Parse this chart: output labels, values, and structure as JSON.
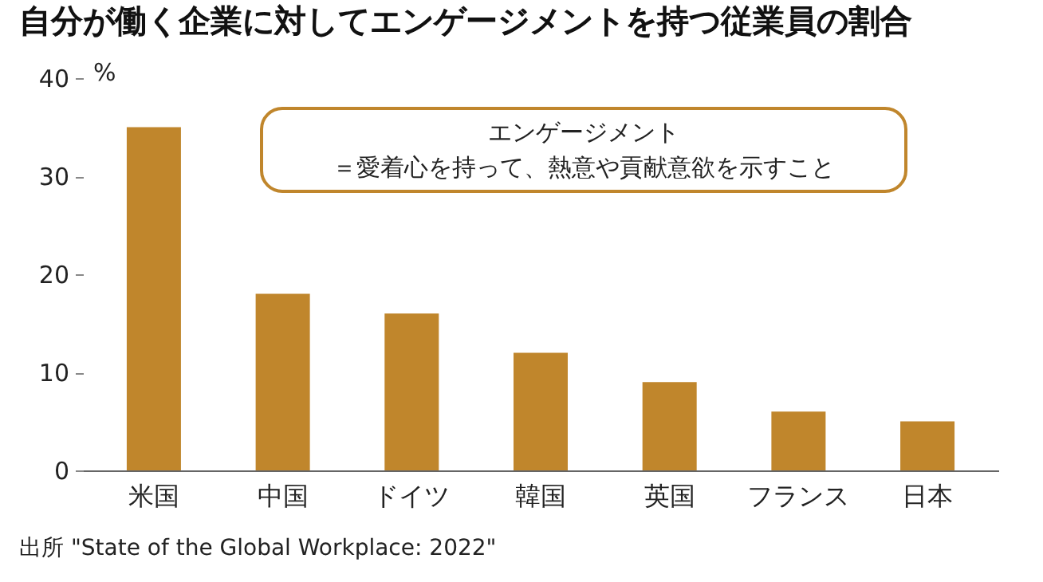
{
  "chart_data": {
    "type": "bar",
    "title": "自分が働く企業に対してエンゲージメントを持つ従業員の割合",
    "ylabel": "%",
    "categories": [
      "米国",
      "中国",
      "ドイツ",
      "韓国",
      "英国",
      "フランス",
      "日本"
    ],
    "values": [
      35,
      18,
      16,
      12,
      9,
      6,
      5
    ],
    "color": "#c0862c",
    "ylim": [
      0,
      40
    ],
    "yticks": [
      0,
      10,
      20,
      30,
      40
    ],
    "grid": false,
    "annotations": [
      "エンゲージメント",
      "＝愛着心を持って、熱意や貢献意欲を示すこと",
      "出所 \"State of the Global Workplace: 2022\""
    ]
  }
}
